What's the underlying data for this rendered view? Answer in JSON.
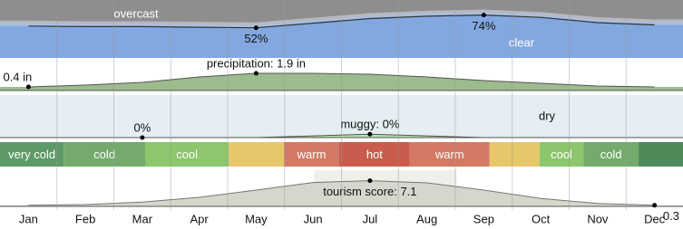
{
  "chart_data": [
    {
      "type": "cloud",
      "top_label": "overcast",
      "bottom_label": "clear",
      "values": [
        55,
        54,
        54,
        53,
        52,
        60,
        68,
        72,
        74,
        70,
        61,
        57
      ],
      "value_labels": [
        null,
        null,
        null,
        null,
        "52%",
        null,
        null,
        null,
        "74%",
        null,
        null,
        null
      ],
      "ylim": [
        0,
        100
      ],
      "color": "#82a8df",
      "background": "#8e8e8e"
    },
    {
      "type": "line",
      "values": [
        0.4,
        0.6,
        0.9,
        1.5,
        1.9,
        1.9,
        1.8,
        1.5,
        1.1,
        0.8,
        0.5,
        0.4
      ],
      "value_labels": [
        "0.4 in",
        null,
        null,
        null,
        "precipitation: 1.9 in",
        null,
        null,
        null,
        null,
        null,
        null,
        null
      ],
      "ylim": [
        0,
        3.2
      ],
      "color": "#9dbb8e"
    },
    {
      "type": "line",
      "top_label": "dry",
      "values": [
        0,
        0,
        0,
        0,
        0,
        0.2,
        0.4,
        0.2,
        0,
        0,
        0,
        0
      ],
      "value_labels": [
        null,
        null,
        "0%",
        null,
        null,
        null,
        "muggy: 0%",
        null,
        null,
        null,
        null,
        null
      ],
      "ylim": [
        0,
        5
      ],
      "color": "#b7e3a6",
      "background": "#e5eef2"
    },
    {
      "type": "bands",
      "bands": [
        {
          "label": "very cold",
          "start": 0,
          "end": 1.12,
          "color": "#5e9a67"
        },
        {
          "label": "cold",
          "start": 1.12,
          "end": 2.55,
          "color": "#74ab6c"
        },
        {
          "label": "cool",
          "start": 2.55,
          "end": 4.02,
          "color": "#8cc66d"
        },
        {
          "label": null,
          "start": 4.02,
          "end": 4.99,
          "color": "#e6c76a"
        },
        {
          "label": "warm",
          "start": 4.99,
          "end": 5.96,
          "color": "#d47966"
        },
        {
          "label": "hot",
          "start": 5.96,
          "end": 7.2,
          "color": "#c95c4d"
        },
        {
          "label": "warm",
          "start": 7.2,
          "end": 8.6,
          "color": "#d47966"
        },
        {
          "label": null,
          "start": 8.6,
          "end": 9.48,
          "color": "#e6c76a"
        },
        {
          "label": "cool",
          "start": 9.48,
          "end": 10.25,
          "color": "#8cc66d"
        },
        {
          "label": "cold",
          "start": 10.25,
          "end": 11.22,
          "color": "#74ab6c"
        },
        {
          "label": null,
          "start": 11.22,
          "end": 12,
          "color": "#4f8a5a"
        }
      ]
    },
    {
      "type": "area",
      "categories": [
        "Jan",
        "Feb",
        "Mar",
        "Apr",
        "May",
        "Jun",
        "Jul",
        "Aug",
        "Sep",
        "Oct",
        "Nov",
        "Dec"
      ],
      "values": [
        0.3,
        0.5,
        1.2,
        2.5,
        4.5,
        6.6,
        7.1,
        6.5,
        4.5,
        2.2,
        0.8,
        0.3
      ],
      "value_labels": [
        null,
        null,
        null,
        null,
        null,
        null,
        "tourism score: 7.1",
        null,
        null,
        null,
        null,
        "0.3"
      ],
      "ylim": [
        0,
        10
      ],
      "color": "#d6d6cc"
    }
  ]
}
